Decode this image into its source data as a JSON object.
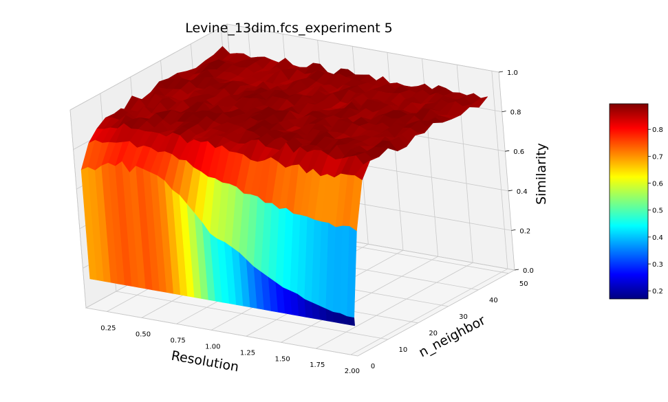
{
  "chart_data": {
    "type": "surface3d",
    "title": "Levine_13dim.fcs_experiment 5",
    "xlabel": "Resolution",
    "ylabel": "n_neighbor",
    "zlabel": "Similarity",
    "xlim": [
      0.1,
      2.05
    ],
    "ylim": [
      0,
      52
    ],
    "zlim": [
      0,
      1.0
    ],
    "x_ticks": [
      "0.25",
      "0.50",
      "0.75",
      "1.00",
      "1.25",
      "1.50",
      "1.75",
      "2.00"
    ],
    "y_ticks": [
      "0",
      "10",
      "20",
      "30",
      "40",
      "50"
    ],
    "z_ticks": [
      "0.0",
      "0.2",
      "0.4",
      "0.6",
      "0.8",
      "1.0"
    ],
    "colormap": "jet",
    "colorbar": {
      "range": [
        0.17,
        0.895
      ],
      "ticks": [
        "0.2",
        "0.3",
        "0.4",
        "0.5",
        "0.6",
        "0.7",
        "0.8"
      ],
      "colors": [
        "#00007f",
        "#0000ff",
        "#007fff",
        "#00ffff",
        "#7fff7f",
        "#ffff00",
        "#ff7f00",
        "#ff0000",
        "#7f0000"
      ]
    },
    "resolution_grid": [
      0.1,
      0.15,
      0.2,
      0.25,
      0.3,
      0.35,
      0.4,
      0.45,
      0.5,
      0.55,
      0.6,
      0.65,
      0.7,
      0.75,
      0.8,
      0.85,
      0.9,
      0.95,
      1.0,
      1.05,
      1.1,
      1.15,
      1.2,
      1.25,
      1.3,
      1.35,
      1.4,
      1.45,
      1.5,
      1.55,
      1.6,
      1.65,
      1.7,
      1.75,
      1.8,
      1.85,
      1.9,
      1.95,
      2.0
    ],
    "n_neighbor_grid": [
      2,
      5,
      8,
      11,
      14,
      17,
      20,
      23,
      26,
      29,
      32,
      35,
      38,
      41,
      44,
      47,
      50
    ],
    "similarity_at_min_n_neighbor": [
      0.68,
      0.7,
      0.69,
      0.72,
      0.74,
      0.73,
      0.76,
      0.71,
      0.75,
      0.74,
      0.73,
      0.72,
      0.7,
      0.66,
      0.64,
      0.6,
      0.56,
      0.52,
      0.47,
      0.45,
      0.44,
      0.42,
      0.4,
      0.37,
      0.34,
      0.32,
      0.3,
      0.28,
      0.26,
      0.25,
      0.24,
      0.22,
      0.21,
      0.2,
      0.19,
      0.18,
      0.18,
      0.17,
      0.17
    ],
    "similarity_plateau": 0.88
  }
}
